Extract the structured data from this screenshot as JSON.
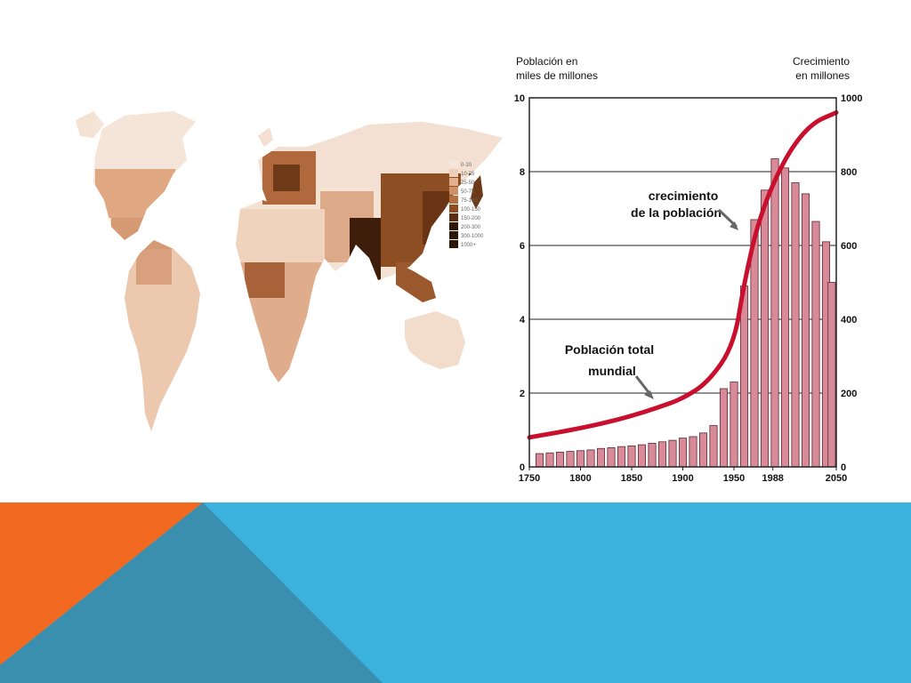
{
  "colors": {
    "bar_fill": "#d98a98",
    "bar_stroke": "#5a2a32",
    "line": "#c8102e",
    "footer_blue": "#3bb1dd",
    "footer_teal": "#3a8fae",
    "footer_orange": "#f26a21",
    "map_scale": [
      "#f6e6da",
      "#efcfb8",
      "#e3b08f",
      "#cf9066",
      "#b4703e",
      "#8e4d22",
      "#5c2d10",
      "#2e1607"
    ]
  },
  "map": {
    "legend": [
      "0-10",
      "10-25",
      "25-50",
      "50-75",
      "75-100",
      "100-150",
      "150-200",
      "200-300",
      "300-1000",
      "1000+"
    ]
  },
  "chart_data": {
    "type": "bar",
    "ylabel_left": [
      "Población en",
      "miles de millones"
    ],
    "ylabel_right": [
      "Crecimiento",
      "en millones"
    ],
    "xticks": [
      "1750",
      "1800",
      "1850",
      "1900",
      "1950",
      "1988",
      "2050"
    ],
    "yticks_left": [
      "0",
      "2",
      "4",
      "6",
      "8",
      "10"
    ],
    "yticks_right": [
      "0",
      "200",
      "400",
      "600",
      "800",
      "1000"
    ],
    "ylim_left": [
      0,
      10
    ],
    "ylim_right": [
      0,
      1000
    ],
    "grid": true,
    "annotations": {
      "growth": [
        "crecimiento",
        "de la población"
      ],
      "total": [
        "Población total",
        "mundial"
      ]
    },
    "series": [
      {
        "type": "bar",
        "axis": "right",
        "x": [
          1760,
          1770,
          1780,
          1790,
          1800,
          1810,
          1820,
          1830,
          1840,
          1850,
          1860,
          1870,
          1880,
          1890,
          1900,
          1910,
          1920,
          1930,
          1940,
          1950,
          1960,
          1970,
          1980,
          1990,
          2000,
          2010,
          2020,
          2030,
          2040
        ],
        "values": [
          36,
          38,
          40,
          42,
          44,
          46,
          50,
          52,
          55,
          57,
          60,
          64,
          68,
          72,
          78,
          82,
          92,
          112,
          212,
          230,
          490,
          670,
          750,
          835,
          810,
          770,
          740,
          665,
          610
        ],
        "extra": [
          500
        ]
      },
      {
        "type": "line",
        "axis": "left",
        "x": [
          1750,
          1775,
          1800,
          1825,
          1850,
          1875,
          1900,
          1925,
          1950,
          1960,
          1975,
          2000,
          2025,
          2050
        ],
        "values": [
          0.8,
          0.92,
          1.05,
          1.2,
          1.38,
          1.6,
          1.85,
          2.3,
          3.3,
          5.0,
          6.8,
          8.4,
          9.3,
          9.6
        ]
      }
    ]
  }
}
